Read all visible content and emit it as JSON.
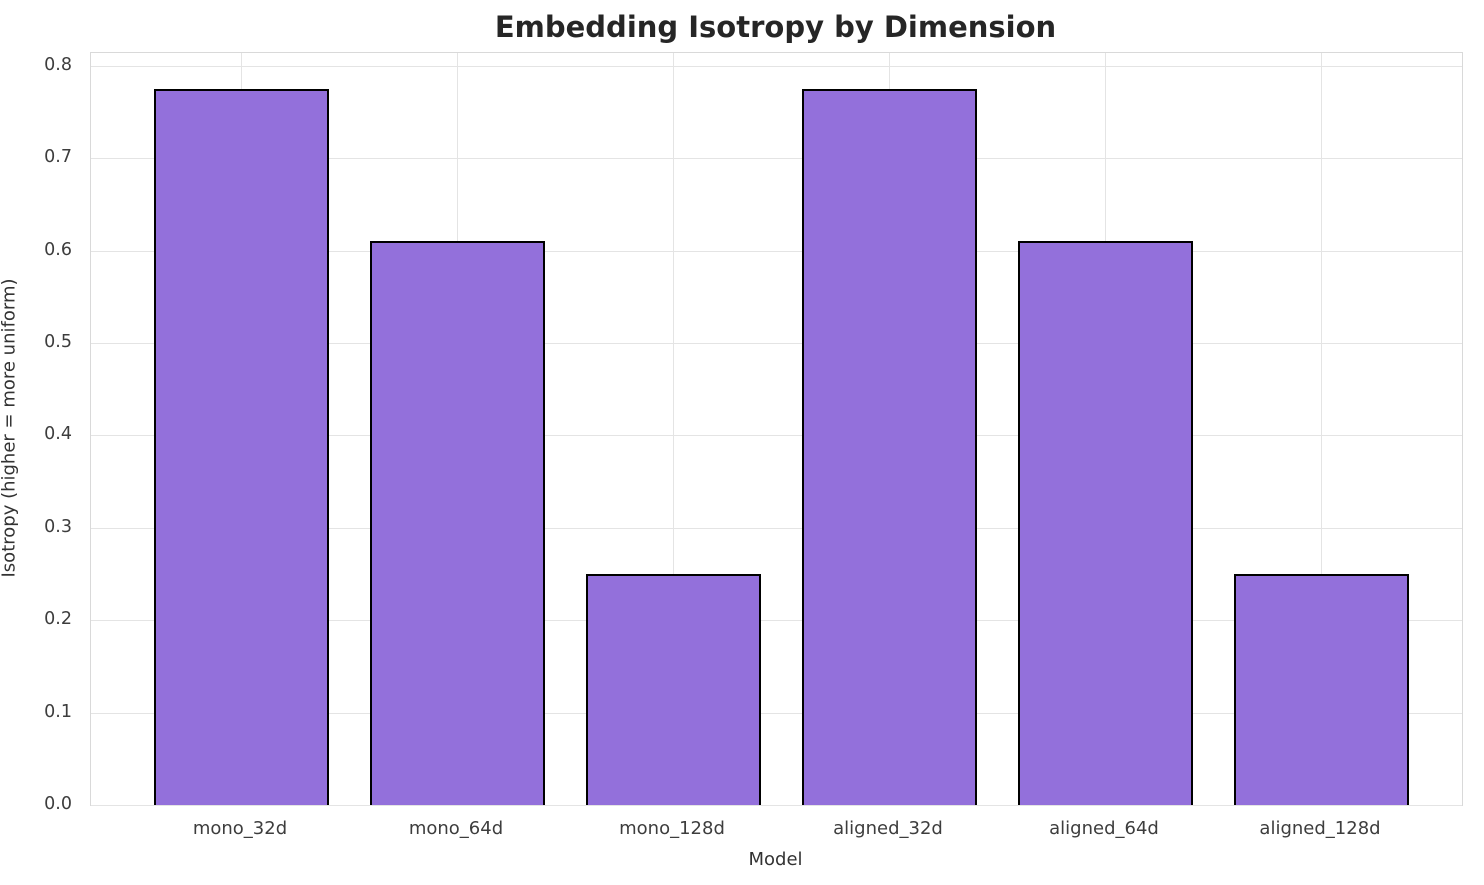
{
  "chart_data": {
    "type": "bar",
    "title": "Embedding Isotropy by Dimension",
    "xlabel": "Model",
    "ylabel": "Isotropy (higher = more uniform)",
    "categories": [
      "mono_32d",
      "mono_64d",
      "mono_128d",
      "aligned_32d",
      "aligned_64d",
      "aligned_128d"
    ],
    "values": [
      0.775,
      0.61,
      0.25,
      0.775,
      0.61,
      0.25
    ],
    "ylim": [
      0,
      0.814
    ],
    "yticks": [
      0.0,
      0.1,
      0.2,
      0.3,
      0.4,
      0.5,
      0.6,
      0.7,
      0.8
    ],
    "ytick_labels": [
      "0.0",
      "0.1",
      "0.2",
      "0.3",
      "0.4",
      "0.5",
      "0.6",
      "0.7",
      "0.8"
    ],
    "grid": true,
    "legend": "none",
    "colors": {
      "bar_fill": "#9370DB",
      "bar_edge": "#000000",
      "gridline": "#e4e4e4",
      "spine": "#d9d9d9",
      "title_text": "#262626",
      "tick_text": "#3d3d3d",
      "axis_label_text": "#333333",
      "background": "#ffffff"
    }
  }
}
